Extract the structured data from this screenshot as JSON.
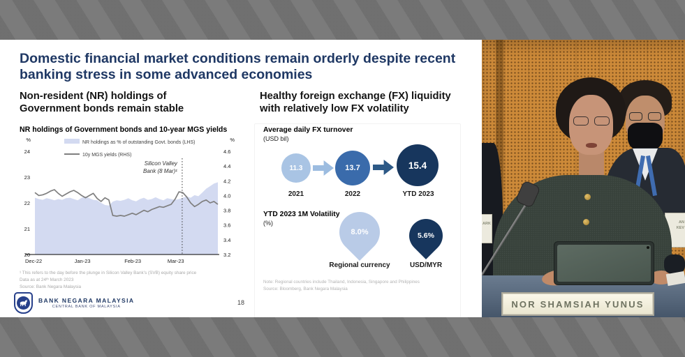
{
  "slide": {
    "title": "Domestic financial market conditions remain orderly despite recent banking stress in some advanced economies",
    "left_heading": "Non-resident (NR) holdings of Government bonds remain stable",
    "right_heading": "Healthy foreign exchange (FX) liquidity with relatively low FX volatility",
    "page_number": "18",
    "footnotes": [
      "¹ This refers to the day before the plunge in Silicon Valley Bank's (SVB) equity share price",
      "Data as at 24ᵗʰ March 2023",
      "Source: Bank Negara Malaysia"
    ],
    "logo": {
      "line1": "BANK NEGARA MALAYSIA",
      "line2": "CENTRAL BANK OF MALAYSIA"
    },
    "accent_color": "#1f3864"
  },
  "chart_data": {
    "type": "area+line",
    "title": "NR holdings of Government bonds and 10-year MGS yields",
    "left_axis": {
      "unit": "%",
      "ticks": [
        24,
        23,
        22,
        21,
        20
      ],
      "min": 20,
      "max": 24
    },
    "right_axis": {
      "unit": "%",
      "ticks": [
        4.6,
        4.4,
        4.2,
        4.0,
        3.8,
        3.6,
        3.4,
        3.2
      ],
      "min": 3.2,
      "max": 4.6
    },
    "x_ticks": [
      {
        "label": "Dec-22",
        "pos": 0.0
      },
      {
        "label": "Jan-23",
        "pos": 0.26
      },
      {
        "label": "Feb-23",
        "pos": 0.535
      },
      {
        "label": "Mar-23",
        "pos": 0.77
      }
    ],
    "annotation": {
      "text": [
        "Silicon Valley",
        "Bank (8 Mar)¹"
      ],
      "x": 0.805
    },
    "series": [
      {
        "name": "NR holdings as % of outstanding Govt. bonds (LHS)",
        "type": "area",
        "axis": "left",
        "color": "#d3daf1",
        "values": [
          22.2,
          22.15,
          22.12,
          22.18,
          22.15,
          22.1,
          22.15,
          22.12,
          22.18,
          22.2,
          22.15,
          22.1,
          22.2,
          22.25,
          22.18,
          22.12,
          22.1,
          22.0,
          21.92,
          21.9,
          22.05,
          22.1,
          22.08,
          22.12,
          22.18,
          22.1,
          22.06,
          22.15,
          22.2,
          22.12,
          22.15,
          22.22,
          22.15,
          22.1,
          22.18,
          22.15,
          22.12,
          22.15,
          22.2,
          22.25,
          22.2,
          22.3,
          22.26,
          22.4,
          22.55,
          22.65,
          22.75,
          22.8
        ]
      },
      {
        "name": "10y MGS yields (RHS)",
        "type": "line",
        "axis": "right",
        "color": "#7f7f7f",
        "values": [
          4.04,
          4.0,
          4.01,
          4.03,
          4.06,
          4.08,
          4.03,
          3.99,
          4.02,
          4.05,
          4.07,
          4.04,
          4.0,
          3.97,
          4.0,
          4.03,
          3.96,
          3.92,
          3.97,
          3.94,
          3.73,
          3.72,
          3.73,
          3.72,
          3.74,
          3.76,
          3.74,
          3.77,
          3.8,
          3.78,
          3.81,
          3.83,
          3.85,
          3.84,
          3.86,
          3.88,
          3.95,
          4.05,
          4.04,
          3.98,
          3.9,
          3.85,
          3.88,
          3.92,
          3.94,
          3.9,
          3.92,
          3.88
        ]
      }
    ],
    "legend_position": "top"
  },
  "fx_turnover": {
    "title": "Average daily FX turnover",
    "unit": "(USD bil)",
    "items": [
      {
        "value": "11.3",
        "label": "2021",
        "color": "#a9c4e4"
      },
      {
        "value": "13.7",
        "label": "2022",
        "color": "#3a6bab"
      },
      {
        "value": "15.4",
        "label": "YTD 2023",
        "color": "#17365d"
      }
    ],
    "arrow_colors": [
      "#9cbce0",
      "#2d5986"
    ]
  },
  "volatility": {
    "title": "YTD 2023 1M Volatility",
    "unit": "(%)",
    "items": [
      {
        "value": "8.0%",
        "label": "Regional currency",
        "color": "#b9cbe7"
      },
      {
        "value": "5.6%",
        "label": "USD/MYR",
        "color": "#17365d"
      }
    ],
    "note": [
      "Note: Regional countries include Thailand, Indonesia, Singapore and Philippines",
      "Source: Bloomberg, Bank Negara Malaysia"
    ]
  },
  "video": {
    "nameplate": "NOR SHAMSIAH YUNUS",
    "left_card_text": "ARK",
    "right_card_lines": [
      "AN",
      "KEV"
    ]
  }
}
